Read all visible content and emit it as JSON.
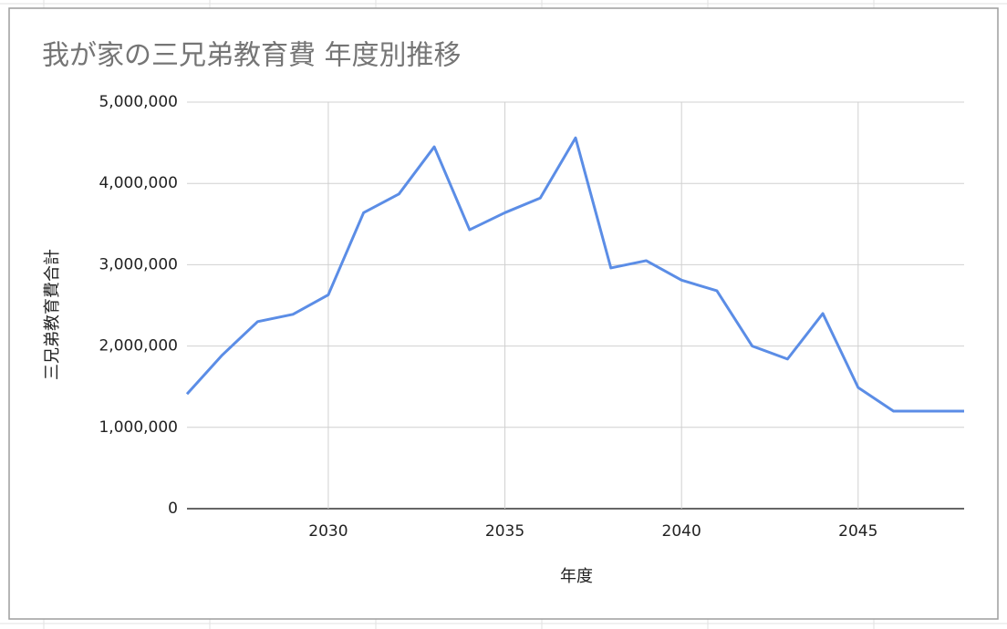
{
  "chart_data": {
    "type": "line",
    "title": "我が家の三兄弟教育費 年度別推移",
    "x_label": "年度",
    "y_label": "三兄弟教育費合計",
    "x": [
      2026,
      2027,
      2028,
      2029,
      2030,
      2031,
      2032,
      2033,
      2034,
      2035,
      2036,
      2037,
      2038,
      2039,
      2040,
      2041,
      2042,
      2043,
      2044,
      2045,
      2046,
      2047,
      2048
    ],
    "series": [
      {
        "name": "三兄弟教育費合計",
        "color": "#5b8de6",
        "values": [
          1410000,
          1890000,
          2300000,
          2390000,
          2630000,
          3640000,
          3870000,
          4450000,
          3430000,
          3640000,
          3820000,
          4560000,
          2960000,
          3050000,
          2810000,
          2680000,
          2000000,
          1840000,
          2400000,
          1490000,
          1200000,
          1200000,
          1200000
        ]
      }
    ],
    "xlim": [
      2026,
      2048
    ],
    "xticks": [
      2030,
      2035,
      2040,
      2045
    ],
    "ylim": [
      0,
      5000000
    ],
    "yticks": [
      0,
      {
        "value": 1000000,
        "label": "1,000,000"
      },
      {
        "value": 2000000,
        "label": "2,000,000"
      },
      {
        "value": 3000000,
        "label": "3,000,000"
      },
      {
        "value": 4000000,
        "label": "4,000,000"
      },
      {
        "value": 5000000,
        "label": "5,000,000"
      }
    ],
    "grid": true
  }
}
